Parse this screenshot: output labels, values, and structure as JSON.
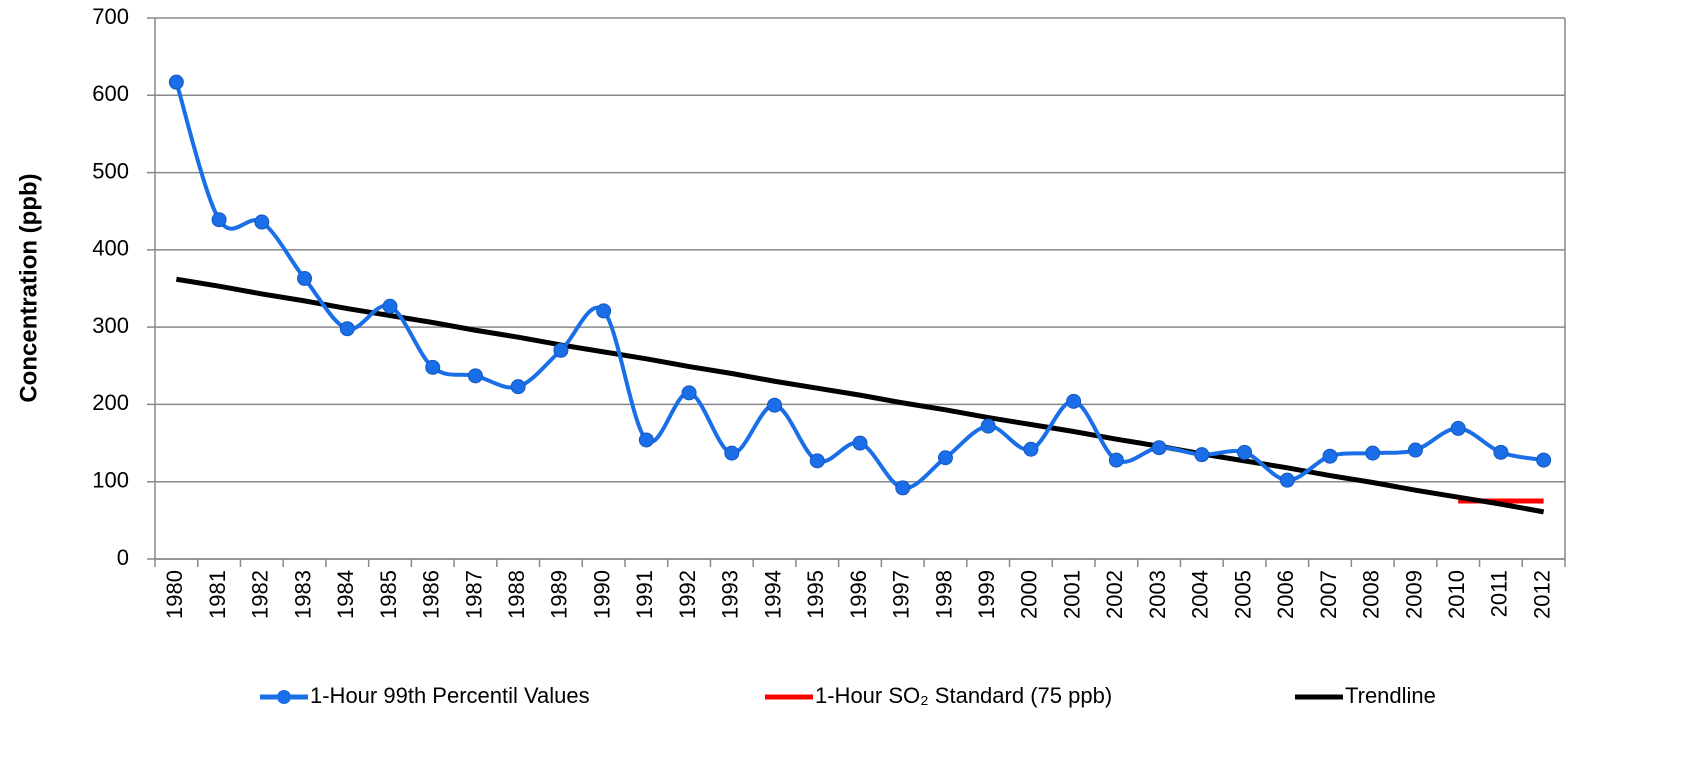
{
  "chart_data": {
    "type": "line",
    "y_label": "Concentration (ppb)",
    "categories": [
      "1980",
      "1981",
      "1982",
      "1983",
      "1984",
      "1985",
      "1986",
      "1987",
      "1988",
      "1989",
      "1990",
      "1991",
      "1992",
      "1993",
      "1994",
      "1995",
      "1996",
      "1997",
      "1998",
      "1999",
      "2000",
      "2001",
      "2002",
      "2003",
      "2004",
      "2005",
      "2006",
      "2007",
      "2008",
      "2009",
      "2010",
      "2011",
      "2012"
    ],
    "series": [
      {
        "name": "1-Hour 99th Percentil Values",
        "color": "#1a6fe8",
        "smooth": true,
        "markers": true,
        "values": [
          617,
          439,
          436,
          363,
          298,
          327,
          248,
          237,
          223,
          270,
          321,
          154,
          215,
          137,
          199,
          127,
          150,
          92,
          131,
          172,
          142,
          204,
          128,
          144,
          135,
          138,
          102,
          133,
          137,
          141,
          169,
          138,
          128
        ]
      },
      {
        "name": "1-Hour SO₂ Standard (75 ppb)",
        "color": "#ff0000",
        "smooth": false,
        "markers": false,
        "values": [
          null,
          null,
          null,
          null,
          null,
          null,
          null,
          null,
          null,
          null,
          null,
          null,
          null,
          null,
          null,
          null,
          null,
          null,
          null,
          null,
          null,
          null,
          null,
          null,
          null,
          null,
          null,
          null,
          null,
          null,
          75,
          75,
          75
        ]
      },
      {
        "name": "Trendline",
        "color": "#000000",
        "smooth": false,
        "markers": false,
        "values": [
          362,
          353,
          343,
          334,
          324,
          315,
          306,
          296,
          287,
          277,
          268,
          259,
          249,
          240,
          230,
          221,
          212,
          202,
          193,
          183,
          174,
          165,
          155,
          146,
          136,
          127,
          118,
          108,
          99,
          89,
          80,
          71,
          61
        ]
      }
    ],
    "ylim": [
      0,
      700
    ],
    "yticks": [
      0,
      100,
      200,
      300,
      400,
      500,
      600,
      700
    ],
    "grid": true,
    "legend": "bottom"
  }
}
